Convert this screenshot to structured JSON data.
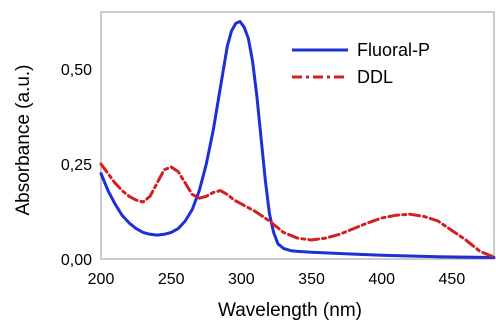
{
  "chart_data": {
    "type": "line",
    "title": "",
    "xlabel": "Wavelength (nm)",
    "ylabel": "Absorbance (a.u.)",
    "xlim": [
      200,
      480
    ],
    "ylim": [
      0,
      0.65
    ],
    "xticks": [
      "200",
      "250",
      "300",
      "350",
      "400",
      "450"
    ],
    "yticks": [
      "0,00",
      "0,25",
      "0,50"
    ],
    "grid": false,
    "legend_position": "top-right",
    "series": [
      {
        "name": "Fluoral-P",
        "color": "#1f2fd6",
        "style": "solid",
        "x": [
          200,
          205,
          210,
          215,
          220,
          225,
          230,
          235,
          240,
          245,
          250,
          255,
          260,
          265,
          270,
          275,
          280,
          285,
          290,
          293,
          296,
          299,
          302,
          305,
          308,
          311,
          314,
          317,
          320,
          323,
          326,
          330,
          335,
          340,
          350,
          360,
          380,
          400,
          420,
          440,
          460,
          480
        ],
        "y": [
          0.225,
          0.18,
          0.145,
          0.115,
          0.095,
          0.08,
          0.07,
          0.065,
          0.063,
          0.065,
          0.07,
          0.08,
          0.1,
          0.13,
          0.18,
          0.25,
          0.34,
          0.45,
          0.56,
          0.6,
          0.62,
          0.625,
          0.61,
          0.58,
          0.52,
          0.43,
          0.32,
          0.21,
          0.12,
          0.07,
          0.04,
          0.028,
          0.022,
          0.02,
          0.018,
          0.016,
          0.013,
          0.01,
          0.008,
          0.006,
          0.005,
          0.004
        ]
      },
      {
        "name": "DDL",
        "color": "#d42020",
        "style": "dash-dot",
        "x": [
          200,
          205,
          210,
          215,
          220,
          225,
          230,
          235,
          240,
          245,
          250,
          255,
          260,
          265,
          270,
          275,
          280,
          285,
          290,
          295,
          300,
          310,
          320,
          330,
          340,
          350,
          360,
          370,
          380,
          390,
          400,
          410,
          420,
          430,
          440,
          450,
          460,
          470,
          480
        ],
        "y": [
          0.25,
          0.225,
          0.2,
          0.18,
          0.165,
          0.155,
          0.15,
          0.165,
          0.2,
          0.235,
          0.242,
          0.23,
          0.2,
          0.17,
          0.16,
          0.165,
          0.175,
          0.18,
          0.17,
          0.155,
          0.145,
          0.125,
          0.1,
          0.07,
          0.055,
          0.05,
          0.055,
          0.065,
          0.08,
          0.095,
          0.108,
          0.115,
          0.118,
          0.112,
          0.1,
          0.075,
          0.05,
          0.02,
          0.005
        ]
      }
    ]
  }
}
